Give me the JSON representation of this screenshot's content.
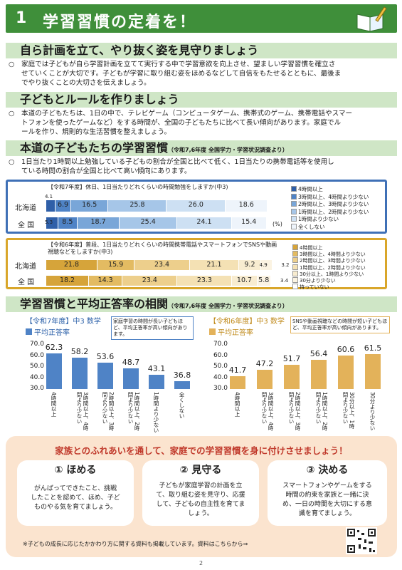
{
  "header": {
    "number": "1",
    "title": "学習習慣の定着を！"
  },
  "sections": {
    "s1": {
      "title": "自ら計画を立て、やり抜く姿を見守りましょう",
      "mark": "○",
      "lines": [
        "家庭では子どもが自ら学習計画を立てて実行する中で学習意欲を向上させ、望ましい学習習慣を確立さ",
        "せていくことが大切です。子どもが学習に取り組む姿をほめるなどして自信をもたせるとともに、最後ま",
        "でやり抜くことの大切さを伝えましょう。"
      ]
    },
    "s2": {
      "title": "子どもとルールを作りましょう",
      "mark": "○",
      "lines": [
        "本道の子どもたちは、1日の中で、テレビゲーム（コンピュータゲーム、携帯式のゲーム、携帯電話やスマー",
        "トフォンを使ったゲームなど）をする時間が、全国の子どもたちに比べて長い傾向があります。家庭でル",
        "ールを作り、規則的な生活習慣を整えましょう。"
      ]
    },
    "s3": {
      "title": "本道の子どもたちの学習習慣",
      "sub": "（令和7,6年度 全国学力・学習状況調査より）",
      "mark": "○",
      "lines": [
        "1日当たり1時間以上勉強している子どもの割合が全国と比べて低く、1日当たりの携帯電話等を使用し",
        "ている時間の割合が全国と比べて高い傾向にあります。"
      ]
    },
    "s4": {
      "title": "学習習慣と平均正答率の相関",
      "sub": "（令和7,6年度 全国学力・学習状況調査より）"
    }
  },
  "chart_data": [
    {
      "type": "bar",
      "title": "【令和7年度】休日、1日当たりどれくらいの時間勉強をしますか(中3)",
      "categories": [
        "北海道",
        "全 国"
      ],
      "series": [
        {
          "name": "4時間以上",
          "values": [
            4.1,
            5.3
          ],
          "color": "#2f5fa8"
        },
        {
          "name": "3時間以上、4時間より少ない",
          "values": [
            6.9,
            8.5
          ],
          "color": "#4f83c6"
        },
        {
          "name": "2時間以上、3時間より少ない",
          "values": [
            16.5,
            18.7
          ],
          "color": "#79a6d8"
        },
        {
          "name": "1時間以上、2時間より少ない",
          "values": [
            25.8,
            25.4
          ],
          "color": "#a6c6e8"
        },
        {
          "name": "1時間より少ない",
          "values": [
            26.0,
            24.1
          ],
          "color": "#cde0f3"
        },
        {
          "name": "全くしない",
          "values": [
            18.6,
            15.4
          ],
          "color": "#eef4fb"
        }
      ],
      "unit": "(%)"
    },
    {
      "type": "bar",
      "title": "【令和6年度】普段、1日当たりどれくらいの時間携帯電話やスマートフォンでSNSや動画視聴などをしますか(中3)",
      "categories": [
        "北海道",
        "全 国"
      ],
      "series": [
        {
          "name": "4時間以上",
          "values": [
            21.8,
            18.2
          ],
          "color": "#d6a43a"
        },
        {
          "name": "3時間以上、4時間より少ない",
          "values": [
            15.9,
            14.3
          ],
          "color": "#e3bb62"
        },
        {
          "name": "2時間以上、3時間より少ない",
          "values": [
            23.4,
            23.4
          ],
          "color": "#edcf8c"
        },
        {
          "name": "1時間以上、2時間より少ない",
          "values": [
            21.1,
            23.3
          ],
          "color": "#f4e1b4"
        },
        {
          "name": "30分以上、1時間より少ない",
          "values": [
            9.2,
            10.7
          ],
          "color": "#f8ecd0"
        },
        {
          "name": "30分より少ない",
          "values": [
            4.9,
            5.8
          ],
          "color": "#fbf3e2"
        },
        {
          "name": "持っていない",
          "values": [
            3.2,
            3.4
          ],
          "color": "#ffffff"
        }
      ]
    },
    {
      "type": "bar",
      "title": "【令和7年度】中3 数学",
      "legend": "平均正答率",
      "categories": [
        "4時間以上",
        "3時間以上、4時間より少ない",
        "2時間以上、3時間より少ない",
        "1時間以上、2時間より少ない",
        "1時間より少ない",
        "全くしない"
      ],
      "values": [
        62.3,
        58.2,
        53.6,
        48.7,
        43.1,
        36.8
      ],
      "ylim": [
        30,
        70
      ],
      "yticks": [
        "70.0",
        "60.0",
        "50.0",
        "40.0",
        "30.0"
      ],
      "note": "家庭学習の時間が長い子どもほど、平均正答率が高い傾向があります。",
      "color": "#4f83c6"
    },
    {
      "type": "bar",
      "title": "【令和6年度】中3 数学",
      "legend": "平均正答率",
      "categories": [
        "4時間以上",
        "3時間以上、4時間より少ない",
        "2時間以上、3時間より少ない",
        "1時間以上、2時間より少ない",
        "30分以上、1時間より少ない",
        "30分より少ない"
      ],
      "values": [
        41.7,
        47.2,
        51.7,
        56.4,
        60.6,
        61.5
      ],
      "ylim": [
        30,
        70
      ],
      "yticks": [
        "70.0",
        "60.0",
        "50.0",
        "40.0",
        "30.0"
      ],
      "note": "SNSや動画視聴などの時間が短い子どもほど、平均正答率が高い傾向があります。",
      "color": "#e3b25a"
    }
  ],
  "bottom": {
    "title": "家族とのふれあいを通して、家庭での学習習慣を身に付けさせましょう！",
    "cards": [
      {
        "head": "① ほめる",
        "lines": [
          "がんばってできたこと、挑戦",
          "したことを認めて、ほめ、子ど",
          "ものやる気を育てましょう。"
        ]
      },
      {
        "head": "② 見守る",
        "lines": [
          "子どもが家庭学習の計画を立",
          "て、取り組む姿を見守り、応援",
          "して、子どもの自主性を育てま",
          "しょう。"
        ]
      },
      {
        "head": "③ 決める",
        "lines": [
          "スマートフォンやゲームをする",
          "時間の約束を家族と一緒に決",
          "め、一日の時間を大切にする意",
          "識を育てましょう。"
        ]
      }
    ],
    "note": "※子どもの成長に応じたかかわり方に関する資料も掲載しています。資料はこちらから⇒"
  },
  "page_number": "2"
}
